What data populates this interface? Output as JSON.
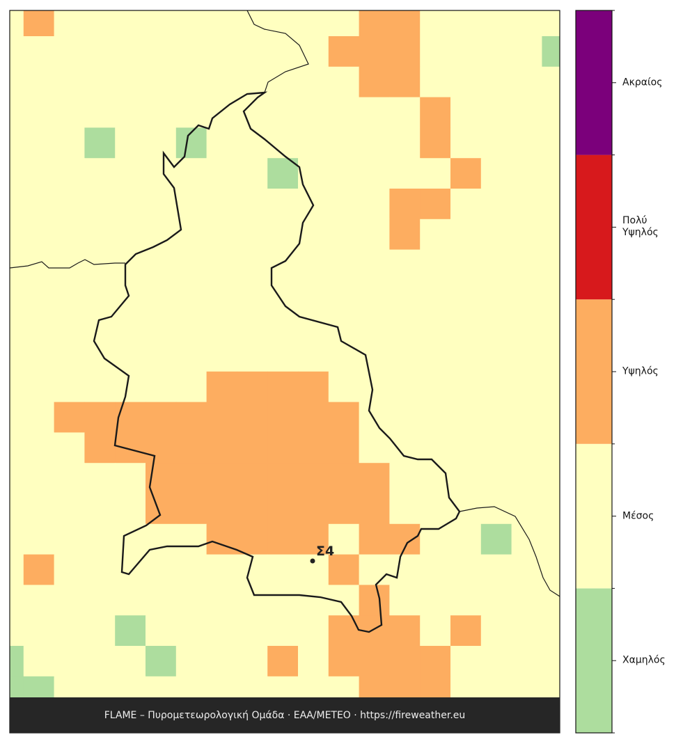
{
  "legend": {
    "levels": [
      {
        "name": "Χαμηλός",
        "color": "#addd9e"
      },
      {
        "name": "Μέσος",
        "color": "#ffffc0"
      },
      {
        "name": "Υψηλός",
        "color": "#fdad60"
      },
      {
        "name": "Πολύ Υψηλός",
        "color": "#d7191c"
      },
      {
        "name": "Ακραίος",
        "color": "#7b007b"
      }
    ]
  },
  "station": {
    "label": "Σ4"
  },
  "footer": {
    "text": "FLAME – Πυρομετεωρολογική Ομάδα · ΕΑΑ/ΜΕΤΕΟ · https://fireweather.eu"
  },
  "raster": [
    [
      1,
      2,
      1,
      1,
      1,
      1,
      1,
      1,
      1,
      1,
      1,
      1,
      2,
      2,
      1,
      1,
      1,
      1,
      1
    ],
    [
      1,
      1,
      1,
      1,
      1,
      1,
      1,
      1,
      1,
      1,
      1,
      2,
      2,
      2,
      1,
      1,
      1,
      1,
      0
    ],
    [
      1,
      1,
      1,
      1,
      1,
      1,
      1,
      1,
      1,
      1,
      1,
      1,
      2,
      2,
      1,
      1,
      1,
      1,
      1
    ],
    [
      1,
      1,
      1,
      1,
      1,
      1,
      1,
      1,
      1,
      1,
      1,
      1,
      1,
      1,
      2,
      1,
      1,
      1,
      1
    ],
    [
      1,
      1,
      1,
      0,
      1,
      1,
      0,
      1,
      1,
      1,
      1,
      1,
      1,
      1,
      2,
      1,
      1,
      1,
      1
    ],
    [
      1,
      1,
      1,
      1,
      1,
      1,
      1,
      1,
      1,
      0,
      1,
      1,
      1,
      1,
      1,
      2,
      1,
      1,
      1
    ],
    [
      1,
      1,
      1,
      1,
      1,
      1,
      1,
      1,
      1,
      1,
      1,
      1,
      1,
      2,
      2,
      1,
      1,
      1,
      1
    ],
    [
      1,
      1,
      1,
      1,
      1,
      1,
      1,
      1,
      1,
      1,
      1,
      1,
      1,
      2,
      1,
      1,
      1,
      1,
      1
    ],
    [
      1,
      1,
      1,
      1,
      1,
      1,
      1,
      1,
      1,
      1,
      1,
      1,
      1,
      1,
      1,
      1,
      1,
      1,
      1
    ],
    [
      1,
      1,
      1,
      1,
      1,
      1,
      1,
      1,
      1,
      1,
      1,
      1,
      1,
      1,
      1,
      1,
      1,
      1,
      1
    ],
    [
      1,
      1,
      1,
      1,
      1,
      1,
      1,
      1,
      1,
      1,
      1,
      1,
      1,
      1,
      1,
      1,
      1,
      1,
      1
    ],
    [
      1,
      1,
      1,
      1,
      1,
      1,
      1,
      1,
      1,
      1,
      1,
      1,
      1,
      1,
      1,
      1,
      1,
      1,
      1
    ],
    [
      1,
      1,
      1,
      1,
      1,
      1,
      1,
      2,
      2,
      2,
      2,
      1,
      1,
      1,
      1,
      1,
      1,
      1,
      1
    ],
    [
      1,
      1,
      2,
      2,
      2,
      2,
      2,
      2,
      2,
      2,
      2,
      2,
      1,
      1,
      1,
      1,
      1,
      1,
      1
    ],
    [
      1,
      1,
      1,
      2,
      2,
      2,
      2,
      2,
      2,
      2,
      2,
      2,
      1,
      1,
      1,
      1,
      1,
      1,
      1
    ],
    [
      1,
      1,
      1,
      1,
      1,
      2,
      2,
      2,
      2,
      2,
      2,
      2,
      2,
      1,
      1,
      1,
      1,
      1,
      1
    ],
    [
      1,
      1,
      1,
      1,
      1,
      2,
      2,
      2,
      2,
      2,
      2,
      2,
      2,
      1,
      1,
      1,
      1,
      1,
      1
    ],
    [
      1,
      1,
      1,
      1,
      1,
      1,
      1,
      2,
      2,
      2,
      2,
      1,
      2,
      2,
      1,
      1,
      0,
      1,
      1
    ],
    [
      1,
      2,
      1,
      1,
      1,
      1,
      1,
      1,
      1,
      1,
      1,
      2,
      1,
      1,
      1,
      1,
      1,
      1,
      1
    ],
    [
      1,
      1,
      1,
      1,
      1,
      1,
      1,
      1,
      1,
      1,
      1,
      1,
      2,
      1,
      1,
      1,
      1,
      1,
      1
    ],
    [
      1,
      1,
      1,
      1,
      0,
      1,
      1,
      1,
      1,
      1,
      1,
      2,
      2,
      2,
      1,
      2,
      1,
      1,
      1
    ],
    [
      0,
      1,
      1,
      1,
      1,
      0,
      1,
      1,
      1,
      2,
      1,
      2,
      2,
      2,
      2,
      1,
      1,
      1,
      1
    ],
    [
      0,
      0,
      1,
      1,
      1,
      1,
      1,
      1,
      1,
      1,
      1,
      1,
      2,
      2,
      2,
      1,
      1,
      1,
      1
    ]
  ]
}
